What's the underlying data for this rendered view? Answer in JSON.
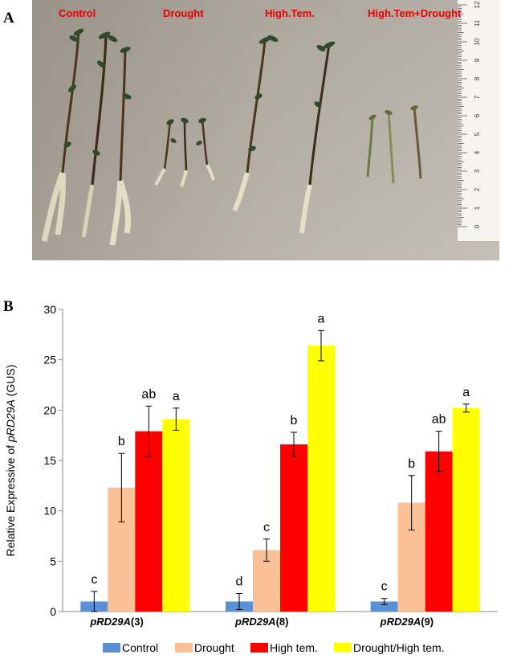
{
  "panels": {
    "a_label": "A",
    "b_label": "B"
  },
  "photo": {
    "conditions": [
      "Control",
      "Drought",
      "High.Tem.",
      "High.Tem+Drought"
    ],
    "ruler_ticks": [
      "0",
      "1",
      "2",
      "3",
      "4",
      "5",
      "6",
      "7",
      "8",
      "9",
      "10",
      "11",
      "12"
    ],
    "label_color": "#e60000"
  },
  "chart_data": {
    "type": "bar",
    "categories": [
      "pRD29A(3)",
      "pRD29A(8)",
      "pRD29A(9)"
    ],
    "category_labels": [
      {
        "italic": "pRD29A",
        "suffix": "(3)"
      },
      {
        "italic": "pRD29A",
        "suffix": "(8)"
      },
      {
        "italic": "pRD29A",
        "suffix": "(9)"
      }
    ],
    "ylabel": {
      "prefix": "Relative Expressive of ",
      "italic": "pRD29A",
      "suffix": " (GUS)"
    },
    "ylim": [
      0,
      30
    ],
    "yticks": [
      0,
      5,
      10,
      15,
      20,
      25,
      30
    ],
    "grid": false,
    "legend_position": "bottom",
    "series": [
      {
        "name": "Control",
        "color": "#5b8fd6",
        "values": [
          1.0,
          1.0,
          1.0
        ],
        "errors": [
          1.0,
          0.8,
          0.3
        ],
        "letters": [
          "c",
          "d",
          "c"
        ]
      },
      {
        "name": "Drought",
        "color": "#f9bf95",
        "values": [
          12.3,
          6.1,
          10.8
        ],
        "errors": [
          3.4,
          1.1,
          2.7
        ],
        "letters": [
          "b",
          "c",
          "b"
        ]
      },
      {
        "name": "High tem.",
        "color": "#ff0000",
        "values": [
          17.9,
          16.6,
          15.9
        ],
        "errors": [
          2.5,
          1.2,
          2.0
        ],
        "letters": [
          "ab",
          "b",
          "ab"
        ]
      },
      {
        "name": "Drought/High tem.",
        "color": "#ffff00",
        "values": [
          19.1,
          26.4,
          20.2
        ],
        "errors": [
          1.1,
          1.5,
          0.4
        ],
        "letters": [
          "a",
          "a",
          "a"
        ]
      }
    ]
  }
}
